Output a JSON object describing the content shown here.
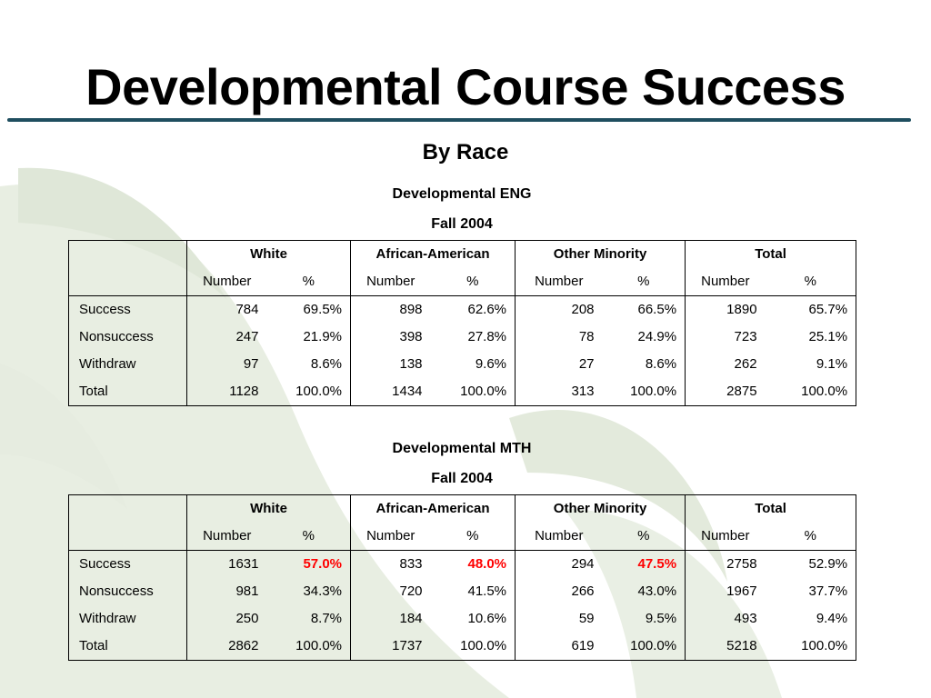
{
  "title": "Developmental Course Success",
  "subtitle": "By Race",
  "column_groups": [
    "White",
    "African-American",
    "Other Minority",
    "Total"
  ],
  "sub_headers": [
    "Number",
    "%"
  ],
  "tables": [
    {
      "caption": "Developmental ENG",
      "term": "Fall 2004",
      "rows": [
        {
          "label": "Success",
          "cells": [
            "784",
            "69.5%",
            "898",
            "62.6%",
            "208",
            "66.5%",
            "1890",
            "65.7%"
          ]
        },
        {
          "label": "Nonsuccess",
          "cells": [
            "247",
            "21.9%",
            "398",
            "27.8%",
            "78",
            "24.9%",
            "723",
            "25.1%"
          ]
        },
        {
          "label": "Withdraw",
          "cells": [
            "97",
            "8.6%",
            "138",
            "9.6%",
            "27",
            "8.6%",
            "262",
            "9.1%"
          ]
        },
        {
          "label": "Total",
          "cells": [
            "1128",
            "100.0%",
            "1434",
            "100.0%",
            "313",
            "100.0%",
            "2875",
            "100.0%"
          ]
        }
      ]
    },
    {
      "caption": "Developmental MTH",
      "term": "Fall 2004",
      "highlight_color": "#ff0000",
      "rows": [
        {
          "label": "Success",
          "cells": [
            "1631",
            "57.0%",
            "833",
            "48.0%",
            "294",
            "47.5%",
            "2758",
            "52.9%"
          ],
          "highlighted_cells": [
            1,
            3,
            5
          ]
        },
        {
          "label": "Nonsuccess",
          "cells": [
            "981",
            "34.3%",
            "720",
            "41.5%",
            "266",
            "43.0%",
            "1967",
            "37.7%"
          ]
        },
        {
          "label": "Withdraw",
          "cells": [
            "250",
            "8.7%",
            "184",
            "10.6%",
            "59",
            "9.5%",
            "493",
            "9.4%"
          ]
        },
        {
          "label": "Total",
          "cells": [
            "2862",
            "100.0%",
            "1737",
            "100.0%",
            "619",
            "100.0%",
            "5218",
            "100.0%"
          ]
        }
      ]
    }
  ]
}
